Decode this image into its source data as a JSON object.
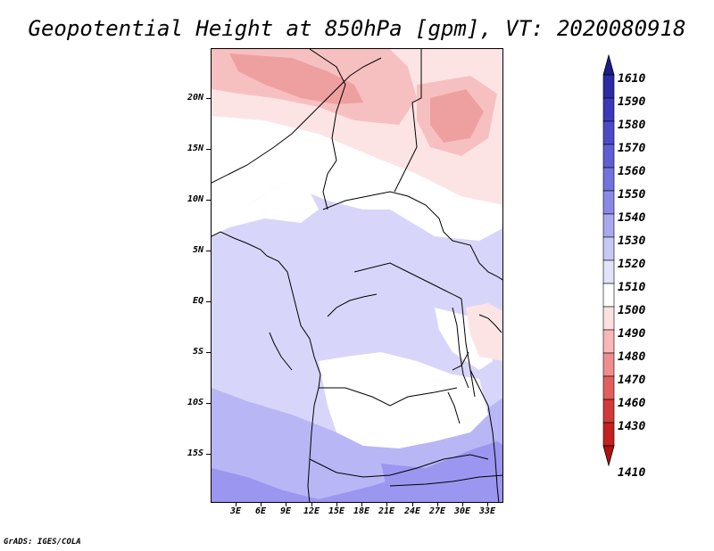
{
  "title": "Geopotential Height at 850hPa [gpm], VT: 2020080918",
  "credit": "GrADS: IGES/COLA",
  "lat_labels": [
    "20N",
    "15N",
    "10N",
    "5N",
    "EQ",
    "5S",
    "10S",
    "15S"
  ],
  "lon_labels": [
    "3E",
    "6E",
    "9E",
    "12E",
    "15E",
    "18E",
    "21E",
    "24E",
    "27E",
    "30E",
    "33E"
  ],
  "colorbar": {
    "labels": [
      "1610",
      "1590",
      "1580",
      "1570",
      "1560",
      "1550",
      "1540",
      "1530",
      "1520",
      "1510",
      "1500",
      "1490",
      "1480",
      "1470",
      "1460",
      "1430",
      "1410"
    ],
    "colors": [
      "#1c1c8a",
      "#2b2ba4",
      "#3a3ab8",
      "#4b4bc8",
      "#5f5fd4",
      "#7373de",
      "#8a8ae6",
      "#a8a8ee",
      "#c8c8f5",
      "#e2e2fb",
      "#ffffff",
      "#fde0e0",
      "#f8b8b8",
      "#ef8e8e",
      "#e25e5e",
      "#d23a3a",
      "#c42020",
      "#b01010"
    ]
  },
  "map_colors": {
    "deep_blue": "#9b96f0",
    "mid_blue": "#b9b6f5",
    "light_blue": "#d7d6fa",
    "white": "#ffffff",
    "light_pink": "#fde4e4",
    "pink": "#f7c0c0",
    "deep_pink": "#eea0a0",
    "coast": "#000000"
  }
}
